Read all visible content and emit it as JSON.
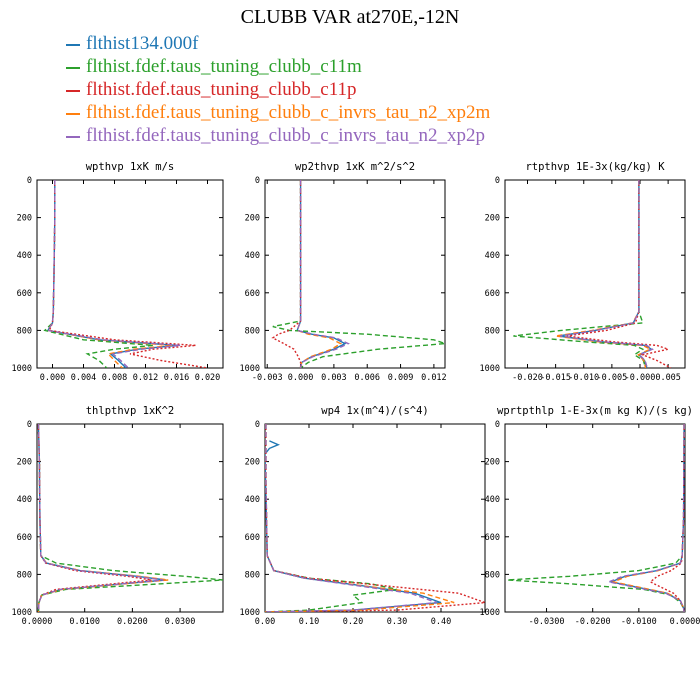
{
  "title": "CLUBB VAR at270E,-12N",
  "legend": [
    {
      "label": "flthist134.000f",
      "color": "#1f77b4",
      "dash": "solid"
    },
    {
      "label": "flthist.fdef.taus_tuning_clubb_c11m",
      "color": "#2ca02c",
      "dash": "dashed"
    },
    {
      "label": "flthist.fdef.taus_tuning_clubb_c11p",
      "color": "#d62728",
      "dash": "dotted"
    },
    {
      "label": "flthist.fdef.taus_tuning_clubb_c_invrs_tau_n2_xp2m",
      "color": "#ff7f0e",
      "dash": "dashed"
    },
    {
      "label": "flthist.fdef.taus_tuning_clubb_c_invrs_tau_n2_xp2p",
      "color": "#9467bd",
      "dash": "dashed"
    }
  ],
  "chart_data": [
    {
      "type": "line",
      "title": "wpthvp  1xK m/s",
      "xlim": [
        -0.002,
        0.022
      ],
      "ylim": [
        1000,
        0
      ],
      "xticks": [
        0.0,
        0.004,
        0.008,
        0.012,
        0.016,
        0.02
      ],
      "xtick_labels": [
        "0.000",
        "0.004",
        "0.008",
        "0.012",
        "0.016",
        "0.020"
      ],
      "yticks": [
        0,
        200,
        400,
        600,
        800,
        1000
      ],
      "series": [
        {
          "y": [
            0,
            200,
            500,
            700,
            760,
            800,
            850,
            880,
            900,
            925,
            960,
            1000
          ],
          "x": [
            0.0003,
            0.0003,
            0.0002,
            0.0001,
            0.0,
            -0.0006,
            0.006,
            0.016,
            0.011,
            0.0075,
            0.0085,
            0.0095
          ]
        },
        {
          "y": [
            0,
            200,
            500,
            700,
            760,
            800,
            850,
            880,
            900,
            925,
            960,
            1000
          ],
          "x": [
            0.0003,
            0.0003,
            0.0002,
            0.0001,
            0.0,
            -0.001,
            0.004,
            0.013,
            0.008,
            0.0045,
            0.006,
            0.007
          ]
        },
        {
          "y": [
            0,
            200,
            500,
            700,
            760,
            800,
            850,
            880,
            900,
            925,
            960,
            1000
          ],
          "x": [
            0.0003,
            0.0003,
            0.0002,
            0.0001,
            0.0,
            -0.0004,
            0.008,
            0.0185,
            0.013,
            0.01,
            0.014,
            0.02
          ]
        },
        {
          "y": [
            0,
            200,
            500,
            700,
            760,
            800,
            850,
            880,
            900,
            925,
            960,
            1000
          ],
          "x": [
            0.0003,
            0.0003,
            0.0002,
            0.0001,
            0.0,
            -0.0006,
            0.006,
            0.0155,
            0.0105,
            0.0072,
            0.008,
            0.009
          ]
        },
        {
          "y": [
            0,
            200,
            500,
            700,
            760,
            800,
            850,
            880,
            900,
            925,
            960,
            1000
          ],
          "x": [
            0.0003,
            0.0003,
            0.0002,
            0.0001,
            0.0,
            -0.0006,
            0.0065,
            0.0165,
            0.0115,
            0.0078,
            0.0088,
            0.0098
          ]
        }
      ]
    },
    {
      "type": "line",
      "title": "wp2thvp  1xK m^2/s^2",
      "xlim": [
        -0.0032,
        0.013
      ],
      "ylim": [
        1000,
        0
      ],
      "xticks": [
        -0.003,
        0.0,
        0.003,
        0.006,
        0.009,
        0.012
      ],
      "xtick_labels": [
        "-0.003",
        "0.000",
        "0.003",
        "0.006",
        "0.009",
        "0.012"
      ],
      "yticks": [
        0,
        200,
        400,
        600,
        800,
        1000
      ],
      "series": [
        {
          "y": [
            0,
            500,
            750,
            800,
            820,
            840,
            870,
            900,
            940,
            970,
            1000
          ],
          "x": [
            0.0,
            0.0,
            0.0,
            -0.0003,
            0.001,
            0.003,
            0.004,
            0.003,
            0.001,
            0.0001,
            0.0
          ]
        },
        {
          "y": [
            0,
            500,
            750,
            780,
            800,
            820,
            850,
            870,
            900,
            940,
            970,
            1000
          ],
          "x": [
            0.0,
            0.0,
            0.0,
            -0.0025,
            -0.001,
            0.006,
            0.012,
            0.013,
            0.007,
            0.002,
            0.0007,
            0.0
          ]
        },
        {
          "y": [
            0,
            500,
            750,
            800,
            820,
            840,
            870,
            900,
            940,
            970,
            1000
          ],
          "x": [
            0.0,
            0.0,
            0.0,
            -0.001,
            -0.002,
            -0.0025,
            -0.0015,
            -0.0006,
            -0.0002,
            0.0,
            0.0
          ]
        },
        {
          "y": [
            0,
            500,
            750,
            800,
            820,
            840,
            870,
            900,
            940,
            970,
            1000
          ],
          "x": [
            0.0,
            0.0,
            0.0,
            -0.0003,
            0.0007,
            0.0026,
            0.0036,
            0.0028,
            0.0009,
            0.0001,
            0.0
          ]
        },
        {
          "y": [
            0,
            500,
            750,
            800,
            820,
            840,
            870,
            900,
            940,
            970,
            1000
          ],
          "x": [
            0.0,
            0.0,
            0.0,
            -0.0003,
            0.0011,
            0.0032,
            0.0043,
            0.0032,
            0.0011,
            0.0001,
            0.0
          ]
        }
      ]
    },
    {
      "type": "line",
      "title": "rtpthvp  1E-3x(kg/kg) K",
      "xlim": [
        -0.024,
        0.008
      ],
      "ylim": [
        1000,
        0
      ],
      "xticks": [
        -0.02,
        -0.015,
        -0.01,
        -0.005,
        0.0,
        0.005
      ],
      "xtick_labels": [
        "-0.020",
        "-0.015",
        "-0.010",
        "-0.005",
        "-0.000",
        "0.005"
      ],
      "yticks": [
        0,
        200,
        400,
        600,
        800,
        1000
      ],
      "series": [
        {
          "y": [
            0,
            500,
            700,
            760,
            800,
            830,
            860,
            880,
            900,
            930,
            960,
            1000
          ],
          "x": [
            -0.0002,
            -0.0002,
            -0.0002,
            -0.0012,
            -0.008,
            -0.0145,
            -0.007,
            0.001,
            0.002,
            -0.0002,
            0.0008,
            0.0012
          ]
        },
        {
          "y": [
            0,
            500,
            700,
            760,
            800,
            830,
            860,
            880,
            900,
            930,
            960,
            1000
          ],
          "x": [
            -0.0002,
            -0.0002,
            -0.0002,
            0.0005,
            -0.014,
            -0.0225,
            -0.01,
            -0.001,
            0.0005,
            -0.001,
            0.0006,
            0.001
          ]
        },
        {
          "y": [
            0,
            500,
            700,
            760,
            800,
            830,
            860,
            880,
            900,
            930,
            960,
            1000
          ],
          "x": [
            -0.0002,
            -0.0002,
            -0.0002,
            -0.0008,
            -0.006,
            -0.013,
            -0.005,
            0.003,
            0.005,
            0.0005,
            0.003,
            0.0055
          ]
        },
        {
          "y": [
            0,
            500,
            700,
            760,
            800,
            830,
            860,
            880,
            900,
            930,
            960,
            1000
          ],
          "x": [
            -0.0002,
            -0.0002,
            -0.0002,
            -0.0013,
            -0.0085,
            -0.015,
            -0.0075,
            0.0005,
            0.0018,
            -0.0003,
            0.0007,
            0.001
          ]
        },
        {
          "y": [
            0,
            500,
            700,
            760,
            800,
            830,
            860,
            880,
            900,
            930,
            960,
            1000
          ],
          "x": [
            -0.0002,
            -0.0002,
            -0.0002,
            -0.0012,
            -0.0078,
            -0.0142,
            -0.0068,
            0.0012,
            0.0022,
            -0.0001,
            0.0009,
            0.0013
          ]
        }
      ]
    },
    {
      "type": "line",
      "title": "thlpthvp  1xK^2",
      "xlim": [
        0.0,
        0.039
      ],
      "ylim": [
        1000,
        0
      ],
      "xticks": [
        0.0,
        0.01,
        0.02,
        0.03
      ],
      "xtick_labels": [
        "0.0000",
        "0.0100",
        "0.0200",
        "0.0300"
      ],
      "yticks": [
        0,
        200,
        400,
        600,
        800,
        1000
      ],
      "series": [
        {
          "y": [
            0,
            200,
            500,
            700,
            740,
            780,
            810,
            830,
            850,
            880,
            910,
            950,
            1000
          ],
          "x": [
            0.0003,
            0.0005,
            0.0006,
            0.0008,
            0.002,
            0.009,
            0.021,
            0.027,
            0.018,
            0.005,
            0.001,
            0.0004,
            0.0003
          ]
        },
        {
          "y": [
            0,
            200,
            500,
            700,
            740,
            780,
            810,
            830,
            850,
            880,
            910,
            950,
            1000
          ],
          "x": [
            0.0003,
            0.0005,
            0.0006,
            0.0008,
            0.004,
            0.016,
            0.031,
            0.039,
            0.026,
            0.006,
            0.001,
            0.0004,
            0.0003
          ]
        },
        {
          "y": [
            0,
            200,
            500,
            700,
            740,
            780,
            810,
            830,
            850,
            880,
            910,
            950,
            1000
          ],
          "x": [
            0.0003,
            0.0005,
            0.0006,
            0.0008,
            0.0018,
            0.008,
            0.019,
            0.024,
            0.016,
            0.004,
            0.0009,
            0.0004,
            0.0003
          ]
        },
        {
          "y": [
            0,
            200,
            500,
            700,
            740,
            780,
            810,
            830,
            850,
            880,
            910,
            950,
            1000
          ],
          "x": [
            0.0003,
            0.0005,
            0.0006,
            0.0008,
            0.002,
            0.0092,
            0.0215,
            0.0275,
            0.0185,
            0.0052,
            0.001,
            0.0004,
            0.0003
          ]
        },
        {
          "y": [
            0,
            200,
            500,
            700,
            740,
            780,
            810,
            830,
            850,
            880,
            910,
            950,
            1000
          ],
          "x": [
            0.0003,
            0.0005,
            0.0006,
            0.0008,
            0.0019,
            0.0088,
            0.0205,
            0.0265,
            0.0178,
            0.0049,
            0.001,
            0.0004,
            0.0003
          ]
        }
      ]
    },
    {
      "type": "line",
      "title": "wp4  1x(m^4)/(s^4)",
      "xlim": [
        0.0,
        0.5
      ],
      "ylim": [
        1000,
        0
      ],
      "xticks": [
        0.0,
        0.1,
        0.2,
        0.3,
        0.4
      ],
      "xtick_labels": [
        "0.00",
        "0.10",
        "0.20",
        "0.30",
        "0.40"
      ],
      "yticks": [
        0,
        200,
        400,
        600,
        800,
        1000
      ],
      "series": [
        {
          "y": [
            90,
            110,
            130,
            160,
            700,
            780,
            820,
            860,
            900,
            950,
            990,
            1000
          ],
          "x": [
            0.01,
            0.03,
            0.01,
            0.0,
            0.005,
            0.02,
            0.09,
            0.22,
            0.34,
            0.4,
            0.2,
            0.0
          ]
        },
        {
          "y": [
            0,
            300,
            700,
            780,
            820,
            850,
            880,
            910,
            950,
            990,
            1000
          ],
          "x": [
            0.002,
            0.002,
            0.005,
            0.02,
            0.1,
            0.24,
            0.3,
            0.2,
            0.22,
            0.1,
            0.0
          ]
        },
        {
          "y": [
            0,
            300,
            700,
            780,
            820,
            860,
            900,
            950,
            990,
            1000
          ],
          "x": [
            0.002,
            0.002,
            0.005,
            0.02,
            0.1,
            0.27,
            0.44,
            0.5,
            0.3,
            0.0
          ]
        },
        {
          "y": [
            0,
            300,
            700,
            780,
            820,
            860,
            900,
            950,
            990,
            1000
          ],
          "x": [
            0.002,
            0.002,
            0.005,
            0.02,
            0.09,
            0.22,
            0.36,
            0.43,
            0.22,
            0.0
          ]
        },
        {
          "y": [
            0,
            300,
            700,
            780,
            820,
            860,
            900,
            950,
            990,
            1000
          ],
          "x": [
            0.002,
            0.002,
            0.005,
            0.02,
            0.09,
            0.21,
            0.33,
            0.39,
            0.2,
            0.0
          ]
        }
      ]
    },
    {
      "type": "line",
      "title": "wprtpthlp  1-E-3x(m kg K)/(s kg)",
      "xlim": [
        -0.039,
        0.0
      ],
      "ylim": [
        1000,
        0
      ],
      "xticks": [
        -0.03,
        -0.02,
        -0.01,
        0.0
      ],
      "xtick_labels": [
        "-0.0300",
        "-0.0200",
        "-0.0100",
        "0.0000"
      ],
      "yticks": [
        0,
        200,
        400,
        600,
        800,
        1000
      ],
      "series": [
        {
          "y": [
            0,
            500,
            700,
            740,
            780,
            810,
            840,
            870,
            900,
            940,
            980,
            1000
          ],
          "x": [
            -0.0002,
            -0.0003,
            -0.0006,
            -0.001,
            -0.006,
            -0.013,
            -0.016,
            -0.01,
            -0.004,
            -0.001,
            -0.0003,
            -0.0002
          ]
        },
        {
          "y": [
            0,
            500,
            700,
            740,
            780,
            810,
            830,
            850,
            880,
            910,
            950,
            980,
            1000
          ],
          "x": [
            -0.0002,
            -0.0003,
            -0.0006,
            -0.002,
            -0.01,
            -0.025,
            -0.0385,
            -0.025,
            -0.009,
            -0.003,
            -0.001,
            -0.0003,
            -0.0002
          ]
        },
        {
          "y": [
            0,
            500,
            700,
            740,
            780,
            810,
            840,
            870,
            900,
            940,
            980,
            1000
          ],
          "x": [
            -0.0002,
            -0.0003,
            -0.0006,
            -0.0008,
            -0.003,
            -0.006,
            -0.0075,
            -0.005,
            -0.0025,
            -0.001,
            -0.0003,
            -0.0002
          ]
        },
        {
          "y": [
            0,
            500,
            700,
            740,
            780,
            810,
            840,
            870,
            900,
            940,
            980,
            1000
          ],
          "x": [
            -0.0002,
            -0.0003,
            -0.0006,
            -0.001,
            -0.0058,
            -0.0125,
            -0.0155,
            -0.0095,
            -0.0038,
            -0.001,
            -0.0003,
            -0.0002
          ]
        },
        {
          "y": [
            0,
            500,
            700,
            740,
            780,
            810,
            840,
            870,
            900,
            940,
            980,
            1000
          ],
          "x": [
            -0.0002,
            -0.0003,
            -0.0006,
            -0.001,
            -0.0062,
            -0.0135,
            -0.0165,
            -0.0105,
            -0.0042,
            -0.001,
            -0.0003,
            -0.0002
          ]
        }
      ]
    }
  ]
}
